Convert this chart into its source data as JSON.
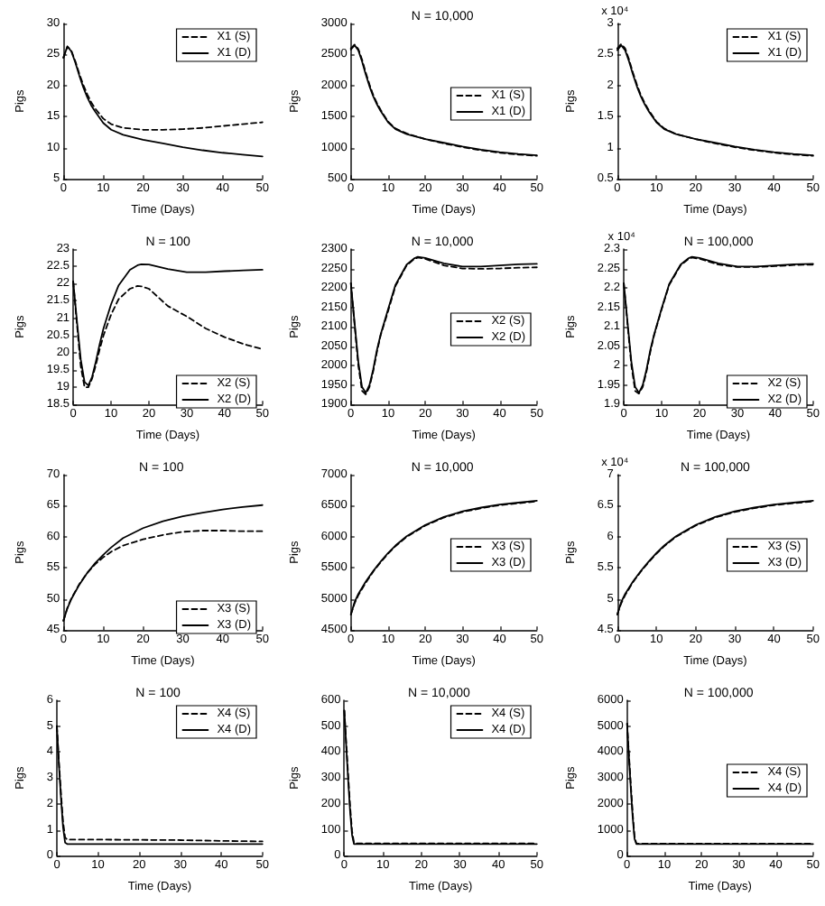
{
  "chart_data": [
    {
      "type": "line",
      "xlabel": "Time (Days)",
      "ylabel": "Pigs",
      "x": [
        0,
        1,
        2,
        3,
        4,
        5,
        6,
        7,
        8,
        10,
        12,
        15,
        20,
        25,
        30,
        35,
        40,
        45,
        50
      ],
      "xlim": [
        0,
        50
      ],
      "xticks": [
        0,
        10,
        20,
        30,
        40,
        50
      ],
      "ylim": [
        5,
        30
      ],
      "yticks": [
        5,
        10,
        15,
        20,
        25,
        30
      ],
      "legend": "top right",
      "series": [
        {
          "name": "X1 (S)",
          "color": "#000000",
          "line_style": "dashed",
          "values": [
            24.5,
            26.3,
            25.6,
            23.9,
            21.9,
            20.1,
            18.6,
            17.3,
            16.3,
            14.7,
            13.8,
            13.2,
            12.9,
            12.9,
            13.0,
            13.2,
            13.5,
            13.8,
            14.1
          ]
        },
        {
          "name": "X1 (D)",
          "color": "#000000",
          "line_style": "solid",
          "values": [
            24.5,
            26.3,
            25.5,
            23.7,
            21.6,
            19.7,
            18.1,
            16.8,
            15.8,
            14.0,
            12.9,
            12.1,
            11.3,
            10.7,
            10.1,
            9.6,
            9.2,
            8.9,
            8.6
          ]
        }
      ]
    },
    {
      "type": "line",
      "title": "N = 10,000",
      "xlabel": "Time (Days)",
      "ylabel": "Pigs",
      "x": [
        0,
        1,
        2,
        3,
        4,
        5,
        6,
        7,
        8,
        10,
        12,
        15,
        20,
        25,
        30,
        35,
        40,
        45,
        50
      ],
      "xlim": [
        0,
        50
      ],
      "xticks": [
        0,
        10,
        20,
        30,
        40,
        50
      ],
      "ylim": [
        500,
        3000
      ],
      "yticks": [
        500,
        1000,
        1500,
        2000,
        2500,
        3000
      ],
      "legend": "right",
      "series": [
        {
          "name": "X1 (S)",
          "color": "#000000",
          "line_style": "dashed",
          "values": [
            2600,
            2660,
            2590,
            2420,
            2210,
            2020,
            1850,
            1720,
            1610,
            1420,
            1310,
            1230,
            1140,
            1070,
            1010,
            960,
            920,
            890,
            870
          ]
        },
        {
          "name": "X1 (D)",
          "color": "#000000",
          "line_style": "solid",
          "values": [
            2580,
            2650,
            2570,
            2390,
            2180,
            1990,
            1830,
            1700,
            1590,
            1410,
            1300,
            1220,
            1140,
            1080,
            1020,
            970,
            930,
            900,
            880
          ]
        }
      ]
    },
    {
      "type": "line",
      "xlabel": "Time (Days)",
      "ylabel": "Pigs",
      "annotations": [
        "x 10⁴"
      ],
      "x": [
        0,
        1,
        2,
        3,
        4,
        5,
        6,
        7,
        8,
        10,
        12,
        15,
        20,
        25,
        30,
        35,
        40,
        45,
        50
      ],
      "xlim": [
        0,
        50
      ],
      "xticks": [
        0,
        10,
        20,
        30,
        40,
        50
      ],
      "ylim": [
        0.5,
        3
      ],
      "yticks": [
        0.5,
        1,
        1.5,
        2,
        2.5,
        3
      ],
      "legend": "top right",
      "series": [
        {
          "name": "X1 (S)",
          "color": "#000000",
          "line_style": "dashed",
          "values": [
            2.6,
            2.67,
            2.6,
            2.42,
            2.21,
            2.02,
            1.85,
            1.72,
            1.61,
            1.42,
            1.31,
            1.22,
            1.14,
            1.07,
            1.01,
            0.96,
            0.92,
            0.89,
            0.87
          ]
        },
        {
          "name": "X1 (D)",
          "color": "#000000",
          "line_style": "solid",
          "values": [
            2.57,
            2.65,
            2.57,
            2.39,
            2.18,
            1.99,
            1.83,
            1.7,
            1.59,
            1.41,
            1.3,
            1.22,
            1.14,
            1.08,
            1.02,
            0.97,
            0.93,
            0.9,
            0.88
          ]
        }
      ]
    },
    {
      "type": "line",
      "title": "N = 100",
      "xlabel": "Time (Days)",
      "ylabel": "Pigs",
      "x": [
        0,
        1,
        2,
        3,
        4,
        5,
        6,
        7,
        8,
        10,
        12,
        15,
        17,
        18,
        20,
        25,
        30,
        35,
        40,
        45,
        50
      ],
      "xlim": [
        0,
        50
      ],
      "xticks": [
        0,
        10,
        20,
        30,
        40,
        50
      ],
      "ylim": [
        18.5,
        23
      ],
      "yticks": [
        18.5,
        19,
        19.5,
        20,
        20.5,
        21,
        21.5,
        22,
        22.5,
        23
      ],
      "legend": "bottom right",
      "series": [
        {
          "name": "X2 (S)",
          "color": "#000000",
          "line_style": "dashed",
          "values": [
            22.06,
            20.8,
            19.6,
            19.0,
            19.0,
            19.25,
            19.65,
            20.1,
            20.5,
            21.1,
            21.55,
            21.85,
            21.93,
            21.92,
            21.85,
            21.35,
            21.05,
            20.7,
            20.45,
            20.25,
            20.1
          ]
        },
        {
          "name": "X2 (D)",
          "color": "#000000",
          "line_style": "solid",
          "values": [
            22.06,
            20.9,
            19.8,
            19.15,
            19.05,
            19.3,
            19.75,
            20.25,
            20.7,
            21.4,
            21.95,
            22.4,
            22.53,
            22.56,
            22.55,
            22.42,
            22.33,
            22.33,
            22.36,
            22.38,
            22.4
          ]
        }
      ]
    },
    {
      "type": "line",
      "title": "N = 10,000",
      "xlabel": "Time (Days)",
      "ylabel": "Pigs",
      "x": [
        0,
        1,
        2,
        3,
        4,
        5,
        6,
        7,
        8,
        10,
        12,
        15,
        17,
        18,
        20,
        25,
        30,
        35,
        40,
        45,
        50
      ],
      "xlim": [
        0,
        50
      ],
      "xticks": [
        0,
        10,
        20,
        30,
        40,
        50
      ],
      "ylim": [
        1900,
        2300
      ],
      "yticks": [
        1900,
        1950,
        2000,
        2050,
        2100,
        2150,
        2200,
        2250,
        2300
      ],
      "legend": "right",
      "series": [
        {
          "name": "X2 (S)",
          "color": "#000000",
          "line_style": "dashed",
          "values": [
            2212,
            2105,
            2000,
            1935,
            1926,
            1945,
            1985,
            2035,
            2078,
            2140,
            2205,
            2258,
            2274,
            2278,
            2275,
            2258,
            2250,
            2249,
            2250,
            2252,
            2253
          ]
        },
        {
          "name": "X2 (D)",
          "color": "#000000",
          "line_style": "solid",
          "values": [
            2212,
            2110,
            2010,
            1945,
            1930,
            1950,
            1990,
            2040,
            2080,
            2145,
            2208,
            2260,
            2276,
            2280,
            2277,
            2263,
            2255,
            2255,
            2258,
            2261,
            2262
          ]
        }
      ]
    },
    {
      "type": "line",
      "title": "N = 100,000",
      "xlabel": "Time (Days)",
      "ylabel": "Pigs",
      "annotations": [
        "x 10⁴"
      ],
      "x": [
        0,
        1,
        2,
        3,
        4,
        5,
        6,
        7,
        8,
        10,
        12,
        15,
        17,
        18,
        20,
        25,
        30,
        35,
        40,
        45,
        50
      ],
      "xlim": [
        0,
        50
      ],
      "xticks": [
        0,
        10,
        20,
        30,
        40,
        50
      ],
      "ylim": [
        1.9,
        2.3
      ],
      "yticks": [
        1.9,
        1.95,
        2,
        2.05,
        2.1,
        2.15,
        2.2,
        2.25,
        2.3
      ],
      "legend": "bottom right",
      "series": [
        {
          "name": "X2 (S)",
          "color": "#000000",
          "line_style": "dashed",
          "values": [
            2.212,
            2.105,
            2.0,
            1.935,
            1.928,
            1.945,
            1.985,
            2.035,
            2.078,
            2.145,
            2.208,
            2.258,
            2.274,
            2.278,
            2.275,
            2.26,
            2.254,
            2.254,
            2.256,
            2.259,
            2.26
          ]
        },
        {
          "name": "X2 (D)",
          "color": "#000000",
          "line_style": "solid",
          "values": [
            2.212,
            2.11,
            2.01,
            1.945,
            1.93,
            1.95,
            1.99,
            2.04,
            2.08,
            2.147,
            2.21,
            2.26,
            2.276,
            2.28,
            2.277,
            2.263,
            2.255,
            2.255,
            2.258,
            2.261,
            2.262
          ]
        }
      ]
    },
    {
      "type": "line",
      "title": "N = 100",
      "xlabel": "Time (Days)",
      "ylabel": "Pigs",
      "x": [
        0,
        1,
        2,
        4,
        6,
        8,
        10,
        12,
        15,
        20,
        25,
        30,
        35,
        40,
        45,
        50
      ],
      "xlim": [
        0,
        50
      ],
      "xticks": [
        0,
        10,
        20,
        30,
        40,
        50
      ],
      "ylim": [
        45,
        70
      ],
      "yticks": [
        45,
        50,
        55,
        60,
        65,
        70
      ],
      "legend": "bottom right",
      "series": [
        {
          "name": "X3 (S)",
          "color": "#000000",
          "line_style": "dashed",
          "values": [
            46.5,
            48.6,
            50.1,
            52.4,
            54.2,
            55.6,
            56.7,
            57.6,
            58.6,
            59.6,
            60.3,
            60.8,
            61.0,
            61.0,
            60.9,
            60.9
          ]
        },
        {
          "name": "X3 (D)",
          "color": "#000000",
          "line_style": "solid",
          "values": [
            46.5,
            48.5,
            50.0,
            52.3,
            54.2,
            55.8,
            57.1,
            58.3,
            59.8,
            61.4,
            62.5,
            63.3,
            63.9,
            64.4,
            64.8,
            65.1
          ]
        }
      ]
    },
    {
      "type": "line",
      "title": "N = 10,000",
      "xlabel": "Time (Days)",
      "ylabel": "Pigs",
      "x": [
        0,
        1,
        2,
        4,
        6,
        8,
        10,
        12,
        15,
        20,
        25,
        30,
        35,
        40,
        45,
        50
      ],
      "xlim": [
        0,
        50
      ],
      "xticks": [
        0,
        10,
        20,
        30,
        40,
        50
      ],
      "ylim": [
        4500,
        7000
      ],
      "yticks": [
        4500,
        5000,
        5500,
        6000,
        6500,
        7000
      ],
      "legend": "right",
      "series": [
        {
          "name": "X3 (S)",
          "color": "#000000",
          "line_style": "dashed",
          "values": [
            4750,
            4930,
            5060,
            5260,
            5440,
            5590,
            5730,
            5850,
            6000,
            6180,
            6310,
            6400,
            6460,
            6510,
            6540,
            6570
          ]
        },
        {
          "name": "X3 (D)",
          "color": "#000000",
          "line_style": "solid",
          "values": [
            4750,
            4950,
            5080,
            5280,
            5450,
            5600,
            5740,
            5860,
            6010,
            6190,
            6320,
            6410,
            6470,
            6520,
            6550,
            6580
          ]
        }
      ]
    },
    {
      "type": "line",
      "title": "N = 100,000",
      "xlabel": "Time (Days)",
      "ylabel": "Pigs",
      "annotations": [
        "x 10⁴"
      ],
      "x": [
        0,
        1,
        2,
        4,
        6,
        8,
        10,
        12,
        15,
        20,
        25,
        30,
        35,
        40,
        45,
        50
      ],
      "xlim": [
        0,
        50
      ],
      "xticks": [
        0,
        10,
        20,
        30,
        40,
        50
      ],
      "ylim": [
        4.5,
        7
      ],
      "yticks": [
        4.5,
        5,
        5.5,
        6,
        6.5,
        7
      ],
      "legend": "right",
      "series": [
        {
          "name": "X3 (S)",
          "color": "#000000",
          "line_style": "dashed",
          "values": [
            4.75,
            4.93,
            5.06,
            5.27,
            5.44,
            5.59,
            5.73,
            5.85,
            6.0,
            6.18,
            6.31,
            6.4,
            6.46,
            6.51,
            6.54,
            6.57
          ]
        },
        {
          "name": "X3 (D)",
          "color": "#000000",
          "line_style": "solid",
          "values": [
            4.75,
            4.95,
            5.08,
            5.28,
            5.45,
            5.6,
            5.74,
            5.86,
            6.01,
            6.19,
            6.32,
            6.41,
            6.47,
            6.52,
            6.55,
            6.58
          ]
        }
      ]
    },
    {
      "type": "line",
      "title": "N = 100",
      "xlabel": "Time (Days)",
      "ylabel": "Pigs",
      "x": [
        0,
        0.5,
        1,
        1.5,
        2,
        2.5,
        3,
        10,
        20,
        30,
        40,
        50
      ],
      "xlim": [
        0,
        50
      ],
      "xticks": [
        0,
        10,
        20,
        30,
        40,
        50
      ],
      "ylim": [
        0,
        6
      ],
      "yticks": [
        0,
        1,
        2,
        3,
        4,
        5,
        6
      ],
      "legend": "top right",
      "series": [
        {
          "name": "X4 (S)",
          "color": "#000000",
          "line_style": "dashed",
          "values": [
            5.0,
            3.6,
            2.4,
            1.3,
            0.7,
            0.62,
            0.62,
            0.62,
            0.61,
            0.6,
            0.57,
            0.55
          ]
        },
        {
          "name": "X4 (D)",
          "color": "#000000",
          "line_style": "solid",
          "values": [
            5.0,
            3.5,
            2.2,
            1.1,
            0.5,
            0.45,
            0.45,
            0.45,
            0.45,
            0.45,
            0.45,
            0.45
          ]
        }
      ]
    },
    {
      "type": "line",
      "title": "N = 10,000",
      "xlabel": "Time (Days)",
      "ylabel": "Pigs",
      "x": [
        0,
        0.5,
        1,
        1.5,
        2,
        2.5,
        3,
        10,
        20,
        30,
        40,
        50
      ],
      "xlim": [
        0,
        50
      ],
      "xticks": [
        0,
        10,
        20,
        30,
        40,
        50
      ],
      "ylim": [
        0,
        600
      ],
      "yticks": [
        0,
        100,
        200,
        300,
        400,
        500,
        600
      ],
      "legend": "top right",
      "series": [
        {
          "name": "X4 (S)",
          "color": "#000000",
          "line_style": "dashed",
          "values": [
            560,
            430,
            310,
            190,
            95,
            50,
            47,
            47,
            47,
            47,
            47,
            47
          ]
        },
        {
          "name": "X4 (D)",
          "color": "#000000",
          "line_style": "solid",
          "values": [
            560,
            420,
            290,
            170,
            80,
            45,
            45,
            45,
            45,
            45,
            45,
            45
          ]
        }
      ]
    },
    {
      "type": "line",
      "title": "N = 100,000",
      "xlabel": "Time (Days)",
      "ylabel": "Pigs",
      "x": [
        0,
        0.5,
        1,
        1.5,
        2,
        2.5,
        3,
        10,
        20,
        30,
        40,
        50
      ],
      "xlim": [
        0,
        50
      ],
      "xticks": [
        0,
        10,
        20,
        30,
        40,
        50
      ],
      "ylim": [
        0,
        6000
      ],
      "yticks": [
        0,
        1000,
        2000,
        3000,
        4000,
        5000,
        6000
      ],
      "legend": "right",
      "series": [
        {
          "name": "X4 (S)",
          "color": "#000000",
          "line_style": "dashed",
          "values": [
            5100,
            3900,
            2750,
            1650,
            750,
            470,
            460,
            460,
            460,
            460,
            460,
            460
          ]
        },
        {
          "name": "X4 (D)",
          "color": "#000000",
          "line_style": "solid",
          "values": [
            5100,
            3800,
            2600,
            1500,
            650,
            450,
            450,
            450,
            450,
            450,
            450,
            450
          ]
        }
      ]
    }
  ]
}
